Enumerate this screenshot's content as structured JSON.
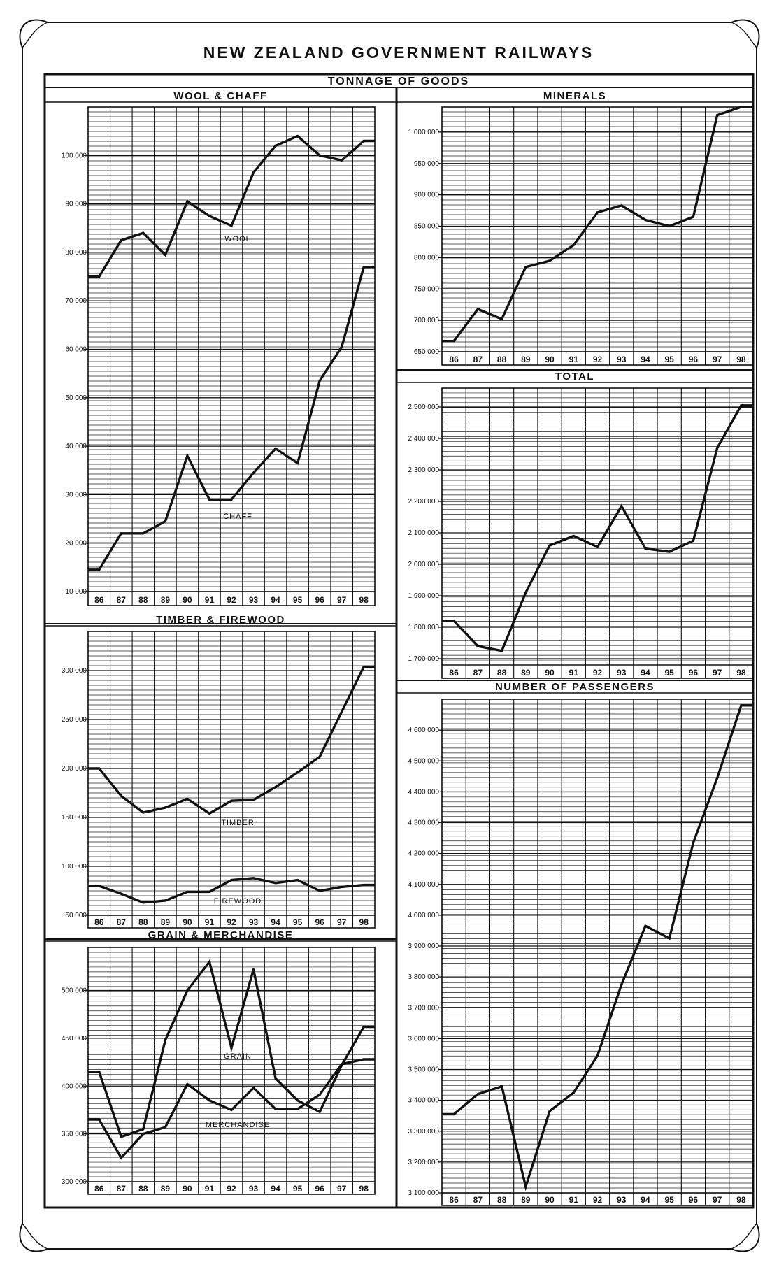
{
  "page": {
    "title": "NEW ZEALAND   GOVERNMENT   RAILWAYS",
    "subtitle": "TONNAGE   OF   GOODS"
  },
  "years": [
    "86",
    "87",
    "88",
    "89",
    "90",
    "91",
    "92",
    "93",
    "94",
    "95",
    "96",
    "97",
    "98"
  ],
  "chart_data": [
    {
      "id": "wool_chaff",
      "type": "line",
      "title": "WOOL & CHAFF",
      "x": [
        "86",
        "87",
        "88",
        "89",
        "90",
        "91",
        "92",
        "93",
        "94",
        "95",
        "96",
        "97",
        "98"
      ],
      "ylim": [
        10000,
        110000
      ],
      "ytick_values": [
        10000,
        20000,
        30000,
        40000,
        50000,
        60000,
        70000,
        80000,
        90000,
        100000
      ],
      "ytick_labels": [
        "10 000",
        "20 000",
        "30 000",
        "40 000",
        "50 000",
        "60 000",
        "70 000",
        "80 000",
        "90 000",
        "100 000"
      ],
      "grid": true,
      "series": [
        {
          "name": "WOOL",
          "values": [
            75000,
            82500,
            84000,
            79500,
            90500,
            87500,
            85500,
            96500,
            102000,
            104000,
            100000,
            99000,
            103000
          ]
        },
        {
          "name": "CHAFF",
          "values": [
            14500,
            22000,
            22000,
            24500,
            38000,
            29000,
            29000,
            34500,
            39500,
            36500,
            53500,
            60500,
            77000
          ]
        }
      ]
    },
    {
      "id": "minerals",
      "type": "line",
      "title": "MINERALS",
      "x": [
        "86",
        "87",
        "88",
        "89",
        "90",
        "91",
        "92",
        "93",
        "94",
        "95",
        "96",
        "97",
        "98"
      ],
      "ylim": [
        650000,
        1040000
      ],
      "ytick_values": [
        650000,
        700000,
        750000,
        800000,
        850000,
        900000,
        950000,
        1000000
      ],
      "ytick_labels": [
        "650 000",
        "700 000",
        "750 000",
        "800 000",
        "850 000",
        "900 000",
        "950 000",
        "1 000 000"
      ],
      "grid": true,
      "series": [
        {
          "name": "",
          "values": [
            667000,
            718000,
            702000,
            785000,
            795000,
            820000,
            872000,
            883000,
            860000,
            850000,
            865000,
            1027000,
            1040000
          ]
        }
      ]
    },
    {
      "id": "total",
      "type": "line",
      "title": "TOTAL",
      "x": [
        "86",
        "87",
        "88",
        "89",
        "90",
        "91",
        "92",
        "93",
        "94",
        "95",
        "96",
        "97",
        "98"
      ],
      "ylim": [
        1680000,
        2560000
      ],
      "ytick_values": [
        1700000,
        1800000,
        1900000,
        2000000,
        2100000,
        2200000,
        2300000,
        2400000,
        2500000
      ],
      "ytick_labels": [
        "1 700 000",
        "1 800 000",
        "1 900 000",
        "2 000 000",
        "2 100 000",
        "2 200 000",
        "2 300 000",
        "2 400 000",
        "2 500 000"
      ],
      "grid": true,
      "series": [
        {
          "name": "",
          "values": [
            1820000,
            1740000,
            1725000,
            1910000,
            2060000,
            2090000,
            2055000,
            2185000,
            2050000,
            2040000,
            2075000,
            2370000,
            2505000
          ]
        }
      ]
    },
    {
      "id": "timber_firewood",
      "type": "line",
      "title": "TIMBER & FIREWOOD",
      "x": [
        "86",
        "87",
        "88",
        "89",
        "90",
        "91",
        "92",
        "93",
        "94",
        "95",
        "96",
        "97",
        "98"
      ],
      "ylim": [
        50000,
        340000
      ],
      "ytick_values": [
        50000,
        100000,
        150000,
        200000,
        250000,
        300000
      ],
      "ytick_labels": [
        "50 000",
        "100 000",
        "150 000",
        "200 000",
        "250 000",
        "300 000"
      ],
      "grid": true,
      "series": [
        {
          "name": "TIMBER",
          "values": [
            200000,
            172000,
            155000,
            160000,
            169000,
            154000,
            167000,
            168000,
            181000,
            196000,
            212000,
            258000,
            304000
          ]
        },
        {
          "name": "FIREWOOD",
          "values": [
            80000,
            72000,
            63000,
            65000,
            74000,
            74000,
            86000,
            88000,
            83000,
            86000,
            75000,
            79000,
            81000
          ]
        }
      ]
    },
    {
      "id": "grain_merchandise",
      "type": "line",
      "title": "GRAIN & MERCHANDISE",
      "x": [
        "86",
        "87",
        "88",
        "89",
        "90",
        "91",
        "92",
        "93",
        "94",
        "95",
        "96",
        "97",
        "98"
      ],
      "ylim": [
        300000,
        545000
      ],
      "ytick_values": [
        300000,
        350000,
        400000,
        450000,
        500000
      ],
      "ytick_labels": [
        "300 000",
        "350 000",
        "400 000",
        "450 000",
        "500 000"
      ],
      "grid": true,
      "series": [
        {
          "name": "GRAIN",
          "values": [
            415000,
            347000,
            355000,
            448000,
            500000,
            530000,
            440000,
            522000,
            408000,
            385000,
            373000,
            422000,
            462000
          ]
        },
        {
          "name": "MERCHANDISE",
          "values": [
            365000,
            325000,
            350000,
            357000,
            402000,
            385000,
            375000,
            398000,
            376000,
            376000,
            391000,
            423000,
            428000
          ]
        }
      ]
    },
    {
      "id": "passengers",
      "type": "line",
      "title": "NUMBER  OF  PASSENGERS",
      "x": [
        "86",
        "87",
        "88",
        "89",
        "90",
        "91",
        "92",
        "93",
        "94",
        "95",
        "96",
        "97",
        "98"
      ],
      "ylim": [
        3100000,
        4700000
      ],
      "ytick_values": [
        3100000,
        3200000,
        3300000,
        3400000,
        3500000,
        3600000,
        3700000,
        3800000,
        3900000,
        4000000,
        4100000,
        4200000,
        4300000,
        4400000,
        4500000,
        4600000
      ],
      "ytick_labels": [
        "3 100 000",
        "3 200 000",
        "3 300 000",
        "3 400 000",
        "3 500 000",
        "3 600 000",
        "3 700 000",
        "3 800 000",
        "3 900 000",
        "4 000 000",
        "4 100 000",
        "4 200 000",
        "4 300 000",
        "4 400 000",
        "4 500 000",
        "4 600 000"
      ],
      "grid": true,
      "series": [
        {
          "name": "",
          "values": [
            3355000,
            3420000,
            3445000,
            3120000,
            3365000,
            3425000,
            3545000,
            3775000,
            3965000,
            3925000,
            4235000,
            4445000,
            4680000
          ]
        }
      ]
    }
  ]
}
